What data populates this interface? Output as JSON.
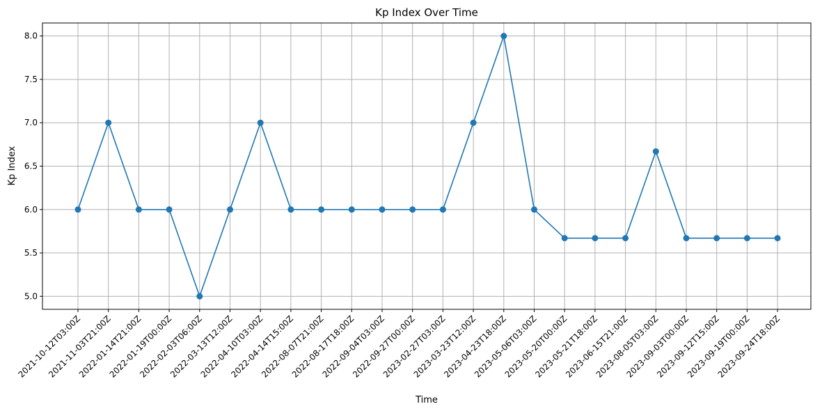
{
  "chart_data": {
    "type": "line",
    "title": "Kp Index Over Time",
    "xlabel": "Time",
    "ylabel": "Kp Index",
    "grid": true,
    "ylim": [
      4.85,
      8.15
    ],
    "yticks": [
      5.0,
      5.5,
      6.0,
      6.5,
      7.0,
      7.5,
      8.0
    ],
    "ytick_labels": [
      "5.0",
      "5.5",
      "6.0",
      "6.5",
      "7.0",
      "7.5",
      "8.0"
    ],
    "color": "#1f77b4",
    "x": [
      "2021-10-12T03:00Z",
      "2021-11-03T21:00Z",
      "2022-01-14T21:00Z",
      "2022-01-19T00:00Z",
      "2022-02-03T06:00Z",
      "2022-03-13T12:00Z",
      "2022-04-10T03:00Z",
      "2022-04-14T15:00Z",
      "2022-08-07T21:00Z",
      "2022-08-17T18:00Z",
      "2022-09-04T03:00Z",
      "2022-09-27T00:00Z",
      "2023-02-27T03:00Z",
      "2023-03-23T12:00Z",
      "2023-04-23T18:00Z",
      "2023-05-06T03:00Z",
      "2023-05-20T00:00Z",
      "2023-05-21T18:00Z",
      "2023-06-15T21:00Z",
      "2023-08-05T03:00Z",
      "2023-09-03T00:00Z",
      "2023-09-12T15:00Z",
      "2023-09-19T00:00Z",
      "2023-09-24T18:00Z"
    ],
    "values": [
      6.0,
      7.0,
      6.0,
      6.0,
      5.0,
      6.0,
      7.0,
      6.0,
      6.0,
      6.0,
      6.0,
      6.0,
      6.0,
      7.0,
      8.0,
      6.0,
      5.67,
      5.67,
      5.67,
      6.67,
      5.67,
      5.67,
      5.67,
      5.67
    ]
  }
}
